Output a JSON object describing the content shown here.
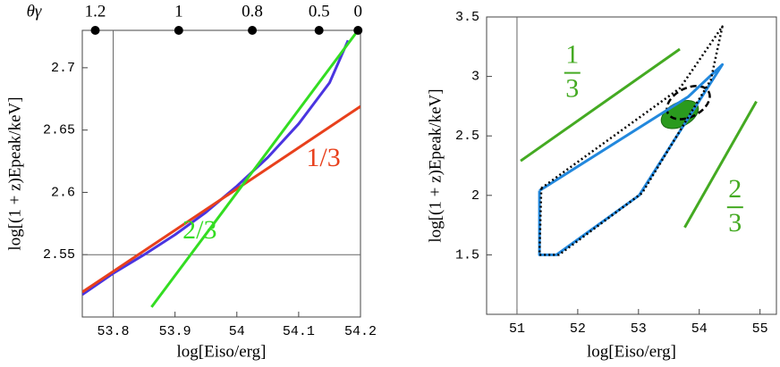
{
  "chart_data": [
    {
      "type": "line",
      "xlabel": "log[Eiso/erg]",
      "ylabel": "log[(1 + z)Epeak/keV]",
      "x2label": "θγ",
      "xlim": [
        53.75,
        54.2
      ],
      "ylim": [
        2.5,
        2.73
      ],
      "xticks": [
        53.8,
        53.9,
        54,
        54.1,
        54.2
      ],
      "yticks": [
        2.55,
        2.6,
        2.65,
        2.7
      ],
      "x2ticks": [
        {
          "value": 53.771,
          "label": "1.2"
        },
        {
          "value": 53.906,
          "label": "1"
        },
        {
          "value": 54.025,
          "label": "0.8"
        },
        {
          "value": 54.133,
          "label": "0.5"
        },
        {
          "value": 54.196,
          "label": "0"
        }
      ],
      "vlines": [
        53.8
      ],
      "hlines": [
        2.55
      ],
      "series": [
        {
          "color": "#4a35e0",
          "x": [
            53.75,
            53.8,
            53.85,
            53.9,
            53.95,
            54.0,
            54.05,
            54.1,
            54.15,
            54.18
          ],
          "values": [
            2.518,
            2.535,
            2.55,
            2.566,
            2.584,
            2.605,
            2.628,
            2.655,
            2.688,
            2.722
          ]
        },
        {
          "color": "#e8401c",
          "x": [
            53.75,
            54.2
          ],
          "values": [
            2.52,
            2.669
          ]
        },
        {
          "color": "#33dd22",
          "x": [
            53.862,
            54.196
          ],
          "values": [
            2.508,
            2.73
          ]
        }
      ],
      "annotations": [
        {
          "text": "1/3",
          "x": 54.14,
          "y": 2.626,
          "color": "#e8401c"
        },
        {
          "text": "2/3",
          "x": 53.94,
          "y": 2.568,
          "color": "#33dd22"
        }
      ]
    },
    {
      "type": "line",
      "xlabel": "log[Eiso/erg]",
      "ylabel": "log[(1 + z)Epeak/keV]",
      "xlim": [
        50.5,
        55.27
      ],
      "ylim": [
        1,
        3.5
      ],
      "xticks": [
        51,
        52,
        53,
        54,
        55
      ],
      "yticks": [
        1.5,
        2,
        2.5,
        3,
        3.5
      ],
      "vlines": [
        51
      ],
      "series": [
        {
          "color": "#2288dd",
          "x": [
            51.37,
            51.37,
            51.65,
            53.01,
            54.38,
            53.82,
            51.37
          ],
          "values": [
            2.04,
            1.5,
            1.5,
            2.0,
            3.1,
            2.83,
            2.04
          ]
        },
        {
          "color": "#000000",
          "dash": "dotted",
          "x": [
            51.4,
            53.68,
            54.38,
            54.19,
            53.06,
            51.69,
            51.37,
            51.4
          ],
          "values": [
            2.06,
            2.9,
            3.42,
            2.97,
            2.02,
            1.5,
            1.5,
            2.06
          ]
        },
        {
          "color": "#44aa22",
          "x": [
            51.06,
            53.68
          ],
          "values": [
            2.29,
            3.23
          ]
        },
        {
          "color": "#44aa22",
          "x": [
            53.76,
            54.94
          ],
          "values": [
            1.73,
            2.79
          ]
        }
      ],
      "ellipses": [
        {
          "color": "#2a9a1e",
          "cx": 53.68,
          "cy": 2.68,
          "rx": 0.33,
          "ry": 0.1
        },
        {
          "color": "#000000",
          "dash": "dashed",
          "cx": 53.82,
          "cy": 2.78,
          "rx": 0.38,
          "ry": 0.12
        }
      ],
      "annotations": [
        {
          "numerator": "1",
          "denominator": "3",
          "x": 51.91,
          "y": 3.03,
          "color": "#44aa22"
        },
        {
          "numerator": "2",
          "denominator": "3",
          "x": 54.59,
          "y": 1.9,
          "color": "#44aa22"
        }
      ]
    }
  ]
}
